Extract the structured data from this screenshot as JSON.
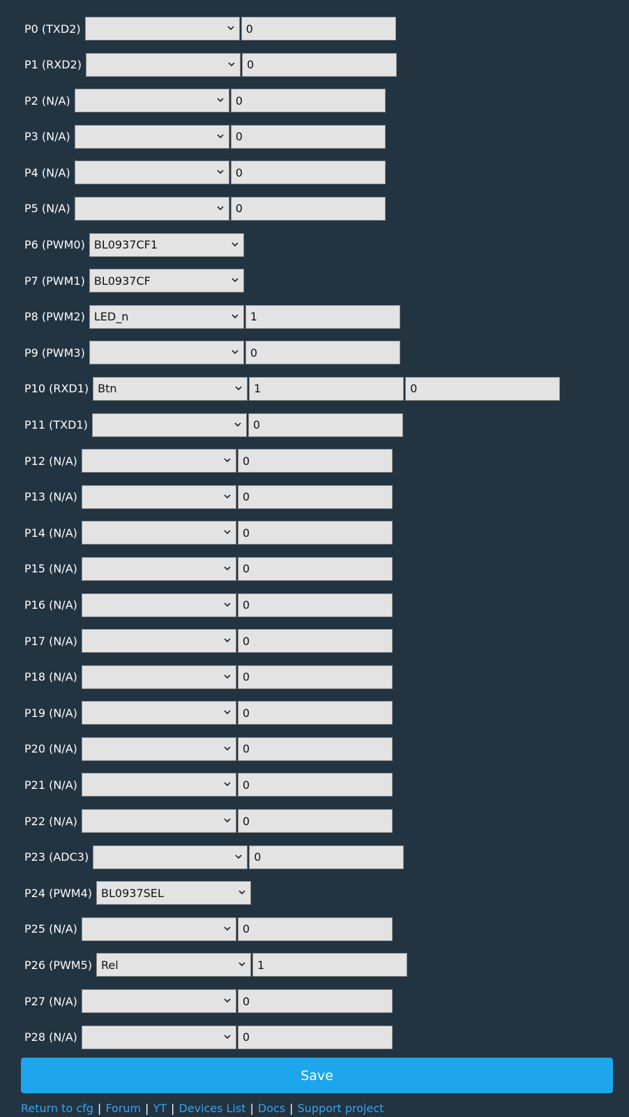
{
  "pins": [
    {
      "label": "P0 (TXD2)",
      "role": "",
      "ch1": "0",
      "ch2": null
    },
    {
      "label": "P1 (RXD2)",
      "role": "",
      "ch1": "0",
      "ch2": null
    },
    {
      "label": "P2 (N/A)",
      "role": "",
      "ch1": "0",
      "ch2": null
    },
    {
      "label": "P3 (N/A)",
      "role": "",
      "ch1": "0",
      "ch2": null
    },
    {
      "label": "P4 (N/A)",
      "role": "",
      "ch1": "0",
      "ch2": null
    },
    {
      "label": "P5 (N/A)",
      "role": "",
      "ch1": "0",
      "ch2": null
    },
    {
      "label": "P6 (PWM0)",
      "role": "BL0937CF1",
      "ch1": null,
      "ch2": null
    },
    {
      "label": "P7 (PWM1)",
      "role": "BL0937CF",
      "ch1": null,
      "ch2": null
    },
    {
      "label": "P8 (PWM2)",
      "role": "LED_n",
      "ch1": "1",
      "ch2": null
    },
    {
      "label": "P9 (PWM3)",
      "role": "",
      "ch1": "0",
      "ch2": null
    },
    {
      "label": "P10 (RXD1)",
      "role": "Btn",
      "ch1": "1",
      "ch2": "0"
    },
    {
      "label": "P11 (TXD1)",
      "role": "",
      "ch1": "0",
      "ch2": null
    },
    {
      "label": "P12 (N/A)",
      "role": "",
      "ch1": "0",
      "ch2": null
    },
    {
      "label": "P13 (N/A)",
      "role": "",
      "ch1": "0",
      "ch2": null
    },
    {
      "label": "P14 (N/A)",
      "role": "",
      "ch1": "0",
      "ch2": null
    },
    {
      "label": "P15 (N/A)",
      "role": "",
      "ch1": "0",
      "ch2": null
    },
    {
      "label": "P16 (N/A)",
      "role": "",
      "ch1": "0",
      "ch2": null
    },
    {
      "label": "P17 (N/A)",
      "role": "",
      "ch1": "0",
      "ch2": null
    },
    {
      "label": "P18 (N/A)",
      "role": "",
      "ch1": "0",
      "ch2": null
    },
    {
      "label": "P19 (N/A)",
      "role": "",
      "ch1": "0",
      "ch2": null
    },
    {
      "label": "P20 (N/A)",
      "role": "",
      "ch1": "0",
      "ch2": null
    },
    {
      "label": "P21 (N/A)",
      "role": "",
      "ch1": "0",
      "ch2": null
    },
    {
      "label": "P22 (N/A)",
      "role": "",
      "ch1": "0",
      "ch2": null
    },
    {
      "label": "P23 (ADC3)",
      "role": "",
      "ch1": "0",
      "ch2": null
    },
    {
      "label": "P24 (PWM4)",
      "role": "BL0937SEL",
      "ch1": null,
      "ch2": null
    },
    {
      "label": "P25 (N/A)",
      "role": "",
      "ch1": "0",
      "ch2": null
    },
    {
      "label": "P26 (PWM5)",
      "role": "Rel",
      "ch1": "1",
      "ch2": null
    },
    {
      "label": "P27 (N/A)",
      "role": "",
      "ch1": "0",
      "ch2": null
    },
    {
      "label": "P28 (N/A)",
      "role": "",
      "ch1": "0",
      "ch2": null
    }
  ],
  "save_label": "Save",
  "footer": {
    "links": [
      "Return to cfg",
      "Forum",
      "YT",
      "Devices List",
      "Docs",
      "Support project"
    ],
    "separator": "|"
  },
  "colors": {
    "background": "#223341",
    "accent": "#1ea6ec",
    "link": "#3aa3ec"
  }
}
